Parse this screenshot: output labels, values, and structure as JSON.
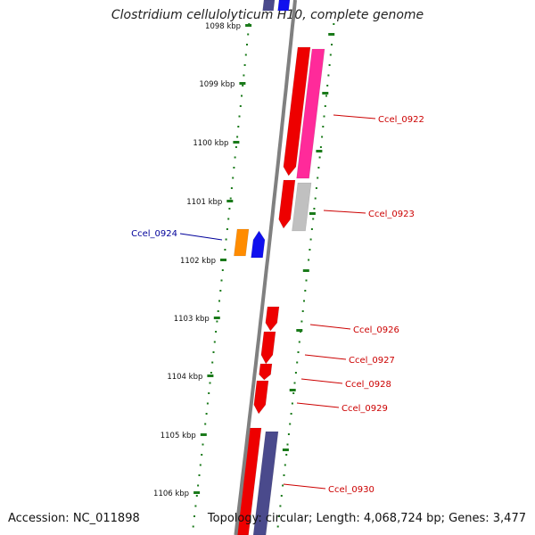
{
  "title": "Clostridium cellulolyticum H10, complete genome",
  "footer": {
    "accession": "Accession: NC_011898",
    "summary": "Topology: circular; Length: 4,068,724 bp; Genes: 3,477"
  },
  "scale": {
    "unit": "kbp",
    "ticks": [
      {
        "label": "1098 kbp",
        "kbp": 1098
      },
      {
        "label": "1099 kbp",
        "kbp": 1099
      },
      {
        "label": "1100 kbp",
        "kbp": 1100
      },
      {
        "label": "1101 kbp",
        "kbp": 1101
      },
      {
        "label": "1102 kbp",
        "kbp": 1102
      },
      {
        "label": "1103 kbp",
        "kbp": 1103
      },
      {
        "label": "1104 kbp",
        "kbp": 1104
      },
      {
        "label": "1105 kbp",
        "kbp": 1105
      },
      {
        "label": "1106 kbp",
        "kbp": 1106
      }
    ]
  },
  "colors": {
    "backbone": "#808080",
    "ticks": "#1a7a1a",
    "red": "#ee0000",
    "pink": "#ff2a9a",
    "grey": "#c0c0c0",
    "purple": "#4a4a8c",
    "blue": "#1010ee",
    "orange": "#ff8c00",
    "label_red": "#cc0000",
    "label_blue": "#00009a"
  },
  "genes": [
    {
      "label": "Ccel_0922",
      "color": "label_red",
      "side": "right"
    },
    {
      "label": "Ccel_0923",
      "color": "label_red",
      "side": "right"
    },
    {
      "label": "Ccel_0924",
      "color": "label_blue",
      "side": "left"
    },
    {
      "label": "Ccel_0926",
      "color": "label_red",
      "side": "right"
    },
    {
      "label": "Ccel_0927",
      "color": "label_red",
      "side": "right"
    },
    {
      "label": "Ccel_0928",
      "color": "label_red",
      "side": "right"
    },
    {
      "label": "Ccel_0929",
      "color": "label_red",
      "side": "right"
    },
    {
      "label": "Ccel_0930",
      "color": "label_red",
      "side": "right"
    }
  ]
}
